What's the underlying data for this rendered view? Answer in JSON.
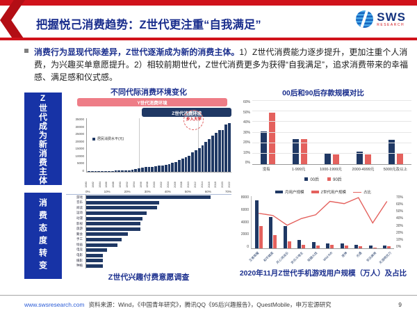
{
  "header": {
    "title": "把握悦己消费趋势：Z世代更注重“自我满足”",
    "logo": {
      "name": "SWS",
      "sub": "RESEARCH"
    }
  },
  "summary": {
    "lead": "消费行为显现代际差异，Z世代逐渐成为新的消费主体。",
    "body": "1）Z世代消费能力逐步提升，更加注重个人消费，为兴趣买单意愿提升。2）相较前期世代，Z世代消费更多为获得“自我满足”，追求消费带来的幸福感、满足感和仪式感。"
  },
  "sidebar": {
    "sections": [
      {
        "label": "Z世代成为新消费主体"
      },
      {
        "label": "消费态度转变"
      }
    ]
  },
  "colors": {
    "navy": "#1f3864",
    "royal": "#1733a6",
    "red": "#d0121b",
    "salmon": "#e4615d",
    "pink": "#ee7d87",
    "title_blue": "#1b2f8e"
  },
  "chart_data": [
    {
      "id": "generation-consumption-environment",
      "type": "bar",
      "title": "不同代际消费环境变化",
      "legend": "居民消费水平(元)",
      "banners": [
        {
          "label": "Y世代消费环境"
        },
        {
          "label": "Z世代消费环境"
        }
      ],
      "annotation": "步入大学",
      "ylim": [
        0,
        35000
      ],
      "yticks": [
        35000,
        30000,
        25000,
        20000,
        15000,
        10000,
        5000,
        0
      ],
      "x": [
        1980,
        1981,
        1982,
        1983,
        1984,
        1985,
        1986,
        1987,
        1988,
        1989,
        1990,
        1991,
        1992,
        1993,
        1994,
        1995,
        1996,
        1997,
        1998,
        1999,
        2000,
        2001,
        2002,
        2003,
        2004,
        2005,
        2006,
        2007,
        2008,
        2009,
        2010,
        2011,
        2012,
        2013,
        2014,
        2015,
        2016,
        2017,
        2018,
        2019,
        2020,
        2021,
        2022
      ],
      "values": [
        238,
        264,
        288,
        316,
        361,
        446,
        497,
        565,
        714,
        788,
        833,
        932,
        1116,
        1393,
        1833,
        2355,
        2789,
        3002,
        3159,
        3346,
        3721,
        3987,
        4301,
        4606,
        5138,
        5771,
        6416,
        7572,
        8707,
        9514,
        10522,
        12570,
        14098,
        15632,
        17211,
        19397,
        21285,
        23421,
        25378,
        27504,
        27439,
        31013,
        31718
      ],
      "grid": false
    },
    {
      "id": "savings-comparison",
      "type": "bar",
      "title": "00后和90后存款规模对比",
      "categories": [
        "没有",
        "1-999元",
        "1000-1999元",
        "2000-4999元",
        "5000元及以上"
      ],
      "series": [
        {
          "name": "00后",
          "color": "#1f3864",
          "values": [
            31,
            24,
            10,
            12,
            23
          ]
        },
        {
          "name": "90后",
          "color": "#e4615d",
          "values": [
            49,
            24,
            9,
            9,
            10
          ]
        }
      ],
      "ylim": [
        0,
        60
      ],
      "yticks": [
        "60%",
        "50%",
        "40%",
        "30%",
        "20%",
        "10%",
        "0%"
      ],
      "grid": true,
      "legend_position": "bottom"
    },
    {
      "id": "interest-payment-survey",
      "type": "bar",
      "orientation": "horizontal",
      "title": "Z世代兴趣付费意愿调查",
      "categories": [
        "游戏",
        "音乐",
        "阅读",
        "运动",
        "动漫",
        "影视",
        "旅游",
        "聚会",
        "手工",
        "绘画",
        "电竞",
        "电影",
        "摄影",
        "种植"
      ],
      "values": [
        60,
        35,
        34,
        29,
        27,
        26,
        26,
        20,
        17,
        15,
        10,
        8,
        8,
        8
      ],
      "xlim": [
        0,
        70
      ],
      "xticks": [
        "0%",
        "10%",
        "20%",
        "30%",
        "40%",
        "50%",
        "60%",
        "70%"
      ],
      "grid": false
    },
    {
      "id": "mobile-game-users",
      "type": "bar",
      "combo": "bar+line",
      "title": "2020年11月Z世代手机游戏用户规模（万人）及占比",
      "categories": [
        "王者荣耀",
        "和平精英",
        "开心消消乐",
        "欢乐斗地主",
        "穿越火线",
        "Wild Rift",
        "原神",
        "光遇",
        "欢乐麻将",
        "天涯明月刀"
      ],
      "series": [
        {
          "name": "月用户规模",
          "color": "#1f3864",
          "values": [
            7400,
            4800,
            3400,
            1300,
            950,
            800,
            750,
            500,
            480,
            450
          ]
        },
        {
          "name": "Z世代用户规模",
          "color": "#e4615d",
          "values": [
            3450,
            2050,
            1050,
            500,
            400,
            500,
            450,
            320,
            80,
            280
          ]
        }
      ],
      "line": {
        "name": "占比",
        "color": "#e4615d",
        "values": [
          47,
          44,
          31,
          40,
          45,
          63,
          60,
          68,
          34,
          63
        ]
      },
      "ylim_left": [
        0,
        8000
      ],
      "yticks_left": [
        8000,
        6000,
        4000,
        2000,
        0
      ],
      "ylim_right": [
        0,
        70
      ],
      "yticks_right": [
        "70%",
        "60%",
        "50%",
        "40%",
        "30%",
        "20%",
        "10%",
        "0%"
      ],
      "legend_position": "top"
    }
  ],
  "footer": {
    "site": "www.swsresearch.com",
    "source": "资料来源：Wind，《中国青年研究》，腾讯QQ《95后兴趣报告》，QuestMobile，申万宏源研究",
    "page": "9"
  }
}
